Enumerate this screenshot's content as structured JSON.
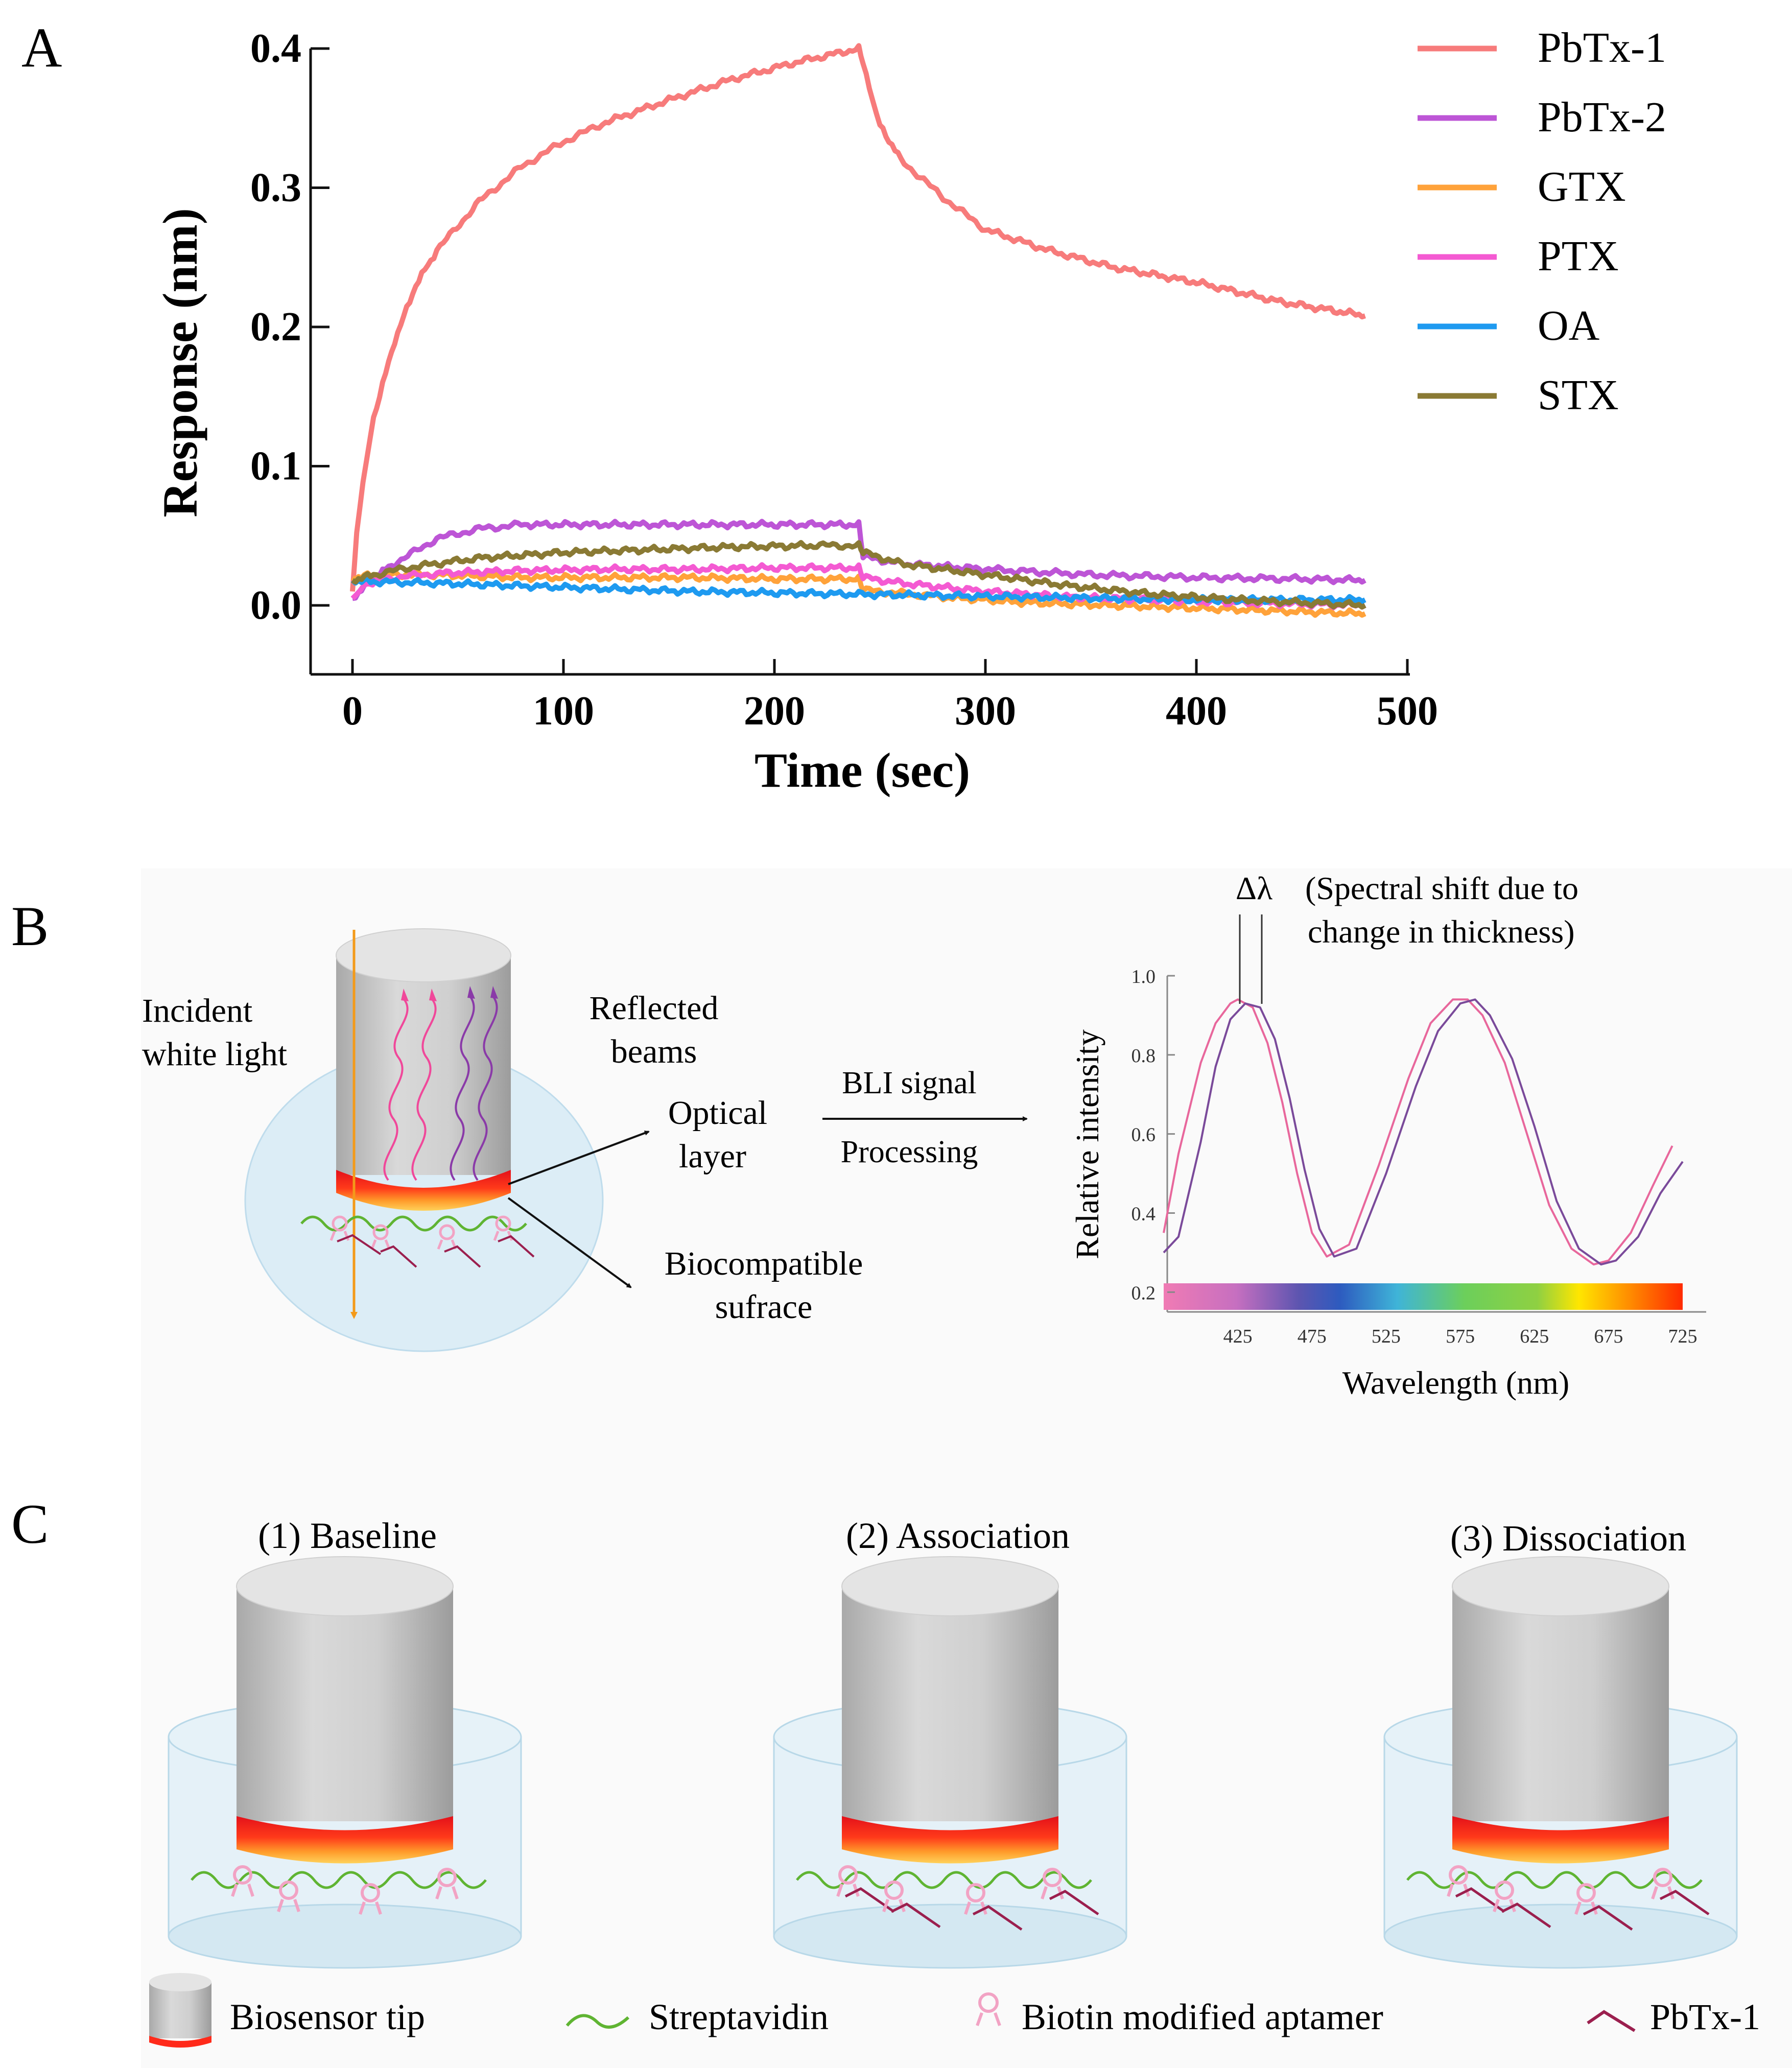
{
  "panels": {
    "a": {
      "letter": "A",
      "xlabel": "Time (sec)",
      "ylabel": "Response (nm)",
      "x_ticks": [
        "0",
        "100",
        "200",
        "300",
        "400",
        "500"
      ],
      "y_ticks": [
        "0.0",
        "0.1",
        "0.2",
        "0.3",
        "0.4"
      ],
      "legend": [
        "PbTx-1",
        "PbTx-2",
        "GTX",
        "PTX",
        "OA",
        "STX"
      ]
    },
    "b": {
      "letter": "B",
      "incident_line1": "Incident",
      "incident_line2": "white light",
      "reflected_line1": "Reflected",
      "reflected_line2": "beams",
      "optical_line1": "Optical",
      "optical_line2": "layer",
      "biocompatible_line1": "Biocompatible",
      "biocompatible_line2": "sufrace",
      "bli_signal": "BLI signal",
      "processing": "Processing",
      "delta_lambda": "Δλ",
      "shift_line1": "(Spectral shift due to",
      "shift_line2": "change in thickness)",
      "spectrum_ylabel": "Relative intensity",
      "spectrum_xlabel": "Wavelength (nm)",
      "spectrum_y_ticks": [
        "1.0",
        "0.8",
        "0.6",
        "0.4",
        "0.2"
      ],
      "spectrum_x_ticks": [
        "425",
        "475",
        "525",
        "575",
        "625",
        "675",
        "725"
      ]
    },
    "c": {
      "letter": "C",
      "steps": [
        "(1) Baseline",
        "(2) Association",
        "(3) Dissociation"
      ],
      "legend": {
        "biosensor_tip": "Biosensor tip",
        "streptavidin": "Streptavidin",
        "aptamer": "Biotin modified aptamer",
        "pbtx": "PbTx-1"
      }
    }
  },
  "colors": {
    "PbTx-1": "#f77b7b",
    "PbTx-2": "#bd55d6",
    "GTX": "#ffa23a",
    "PTX": "#f45ad2",
    "OA": "#1e9af0",
    "STX": "#8a7a34",
    "tip_gray": "#c8c8c8",
    "optical_red": "#ff2a1a",
    "streptavidin": "#5fb432",
    "aptamer": "#f2a3c4",
    "pbtx_mark": "#9b1f4e",
    "solution": "#dcedf6"
  },
  "chart_data": [
    {
      "type": "line",
      "xlabel": "Time (sec)",
      "ylabel": "Response (nm)",
      "xlim": [
        0,
        500
      ],
      "ylim": [
        0,
        0.4
      ],
      "x_ticks": [
        0,
        100,
        200,
        300,
        400,
        500
      ],
      "y_ticks": [
        0,
        0.1,
        0.2,
        0.3,
        0.4
      ],
      "legend_position": "right",
      "series": [
        {
          "name": "PbTx-1",
          "x": [
            0,
            2,
            5,
            10,
            20,
            30,
            40,
            60,
            80,
            100,
            120,
            150,
            180,
            210,
            240,
            242,
            245,
            250,
            260,
            280,
            300,
            330,
            360,
            400,
            440,
            480
          ],
          "y": [
            0.01,
            0.05,
            0.09,
            0.135,
            0.19,
            0.23,
            0.255,
            0.29,
            0.315,
            0.333,
            0.347,
            0.363,
            0.378,
            0.39,
            0.4,
            0.39,
            0.37,
            0.345,
            0.32,
            0.293,
            0.27,
            0.255,
            0.243,
            0.232,
            0.218,
            0.208
          ]
        },
        {
          "name": "PbTx-2",
          "x": [
            0,
            10,
            20,
            40,
            60,
            80,
            120,
            160,
            200,
            240,
            242,
            260,
            300,
            350,
            400,
            450,
            480
          ],
          "y": [
            0.005,
            0.02,
            0.03,
            0.048,
            0.055,
            0.058,
            0.058,
            0.058,
            0.058,
            0.058,
            0.035,
            0.03,
            0.026,
            0.022,
            0.02,
            0.019,
            0.018
          ]
        },
        {
          "name": "GTX",
          "x": [
            0,
            10,
            40,
            80,
            120,
            160,
            200,
            240,
            242,
            280,
            320,
            360,
            400,
            440,
            480
          ],
          "y": [
            0.02,
            0.022,
            0.022,
            0.02,
            0.02,
            0.02,
            0.019,
            0.019,
            0.011,
            0.006,
            0.002,
            0.0,
            -0.002,
            -0.004,
            -0.006
          ]
        },
        {
          "name": "PTX",
          "x": [
            0,
            5,
            20,
            40,
            80,
            120,
            160,
            200,
            240,
            242,
            260,
            300,
            340,
            380,
            420,
            480
          ],
          "y": [
            0.005,
            0.015,
            0.02,
            0.023,
            0.025,
            0.026,
            0.026,
            0.027,
            0.027,
            0.02,
            0.016,
            0.01,
            0.006,
            0.004,
            0.002,
            0.0
          ]
        },
        {
          "name": "OA",
          "x": [
            0,
            10,
            40,
            80,
            120,
            160,
            200,
            240,
            280,
            320,
            360,
            400,
            440,
            480
          ],
          "y": [
            0.018,
            0.017,
            0.016,
            0.014,
            0.012,
            0.01,
            0.009,
            0.008,
            0.007,
            0.006,
            0.005,
            0.004,
            0.004,
            0.004
          ]
        },
        {
          "name": "STX",
          "x": [
            0,
            10,
            30,
            60,
            100,
            140,
            180,
            220,
            240,
            242,
            260,
            300,
            340,
            380,
            420,
            480
          ],
          "y": [
            0.018,
            0.022,
            0.028,
            0.034,
            0.038,
            0.04,
            0.042,
            0.043,
            0.043,
            0.038,
            0.03,
            0.022,
            0.014,
            0.008,
            0.004,
            0.0
          ]
        }
      ]
    },
    {
      "type": "line",
      "xlabel": "Wavelength (nm)",
      "ylabel": "Relative intensity",
      "xlim": [
        375,
        735
      ],
      "ylim": [
        0.15,
        1.0
      ],
      "x_ticks": [
        425,
        475,
        525,
        575,
        625,
        675,
        725
      ],
      "y_ticks": [
        0.2,
        0.4,
        0.6,
        0.8,
        1.0
      ],
      "annotation": "Δλ (Spectral shift due to change in thickness)",
      "series": [
        {
          "x": [
            375,
            385,
            400,
            410,
            420,
            425,
            435,
            445,
            455,
            465,
            475,
            485,
            500,
            520,
            540,
            555,
            570,
            580,
            590,
            605,
            620,
            635,
            650,
            665,
            675,
            690,
            705,
            718
          ],
          "y": [
            0.35,
            0.55,
            0.78,
            0.88,
            0.93,
            0.94,
            0.92,
            0.83,
            0.68,
            0.5,
            0.35,
            0.29,
            0.32,
            0.52,
            0.74,
            0.88,
            0.94,
            0.94,
            0.9,
            0.78,
            0.6,
            0.42,
            0.31,
            0.27,
            0.28,
            0.35,
            0.47,
            0.57
          ]
        },
        {
          "x": [
            375,
            385,
            400,
            410,
            420,
            430,
            440,
            450,
            460,
            470,
            480,
            490,
            505,
            525,
            545,
            560,
            575,
            585,
            595,
            610,
            625,
            640,
            655,
            670,
            680,
            695,
            710,
            725
          ],
          "y": [
            0.3,
            0.34,
            0.58,
            0.77,
            0.89,
            0.93,
            0.92,
            0.84,
            0.69,
            0.51,
            0.36,
            0.29,
            0.31,
            0.5,
            0.72,
            0.86,
            0.93,
            0.94,
            0.9,
            0.79,
            0.62,
            0.43,
            0.31,
            0.27,
            0.28,
            0.34,
            0.45,
            0.53
          ]
        }
      ]
    }
  ]
}
